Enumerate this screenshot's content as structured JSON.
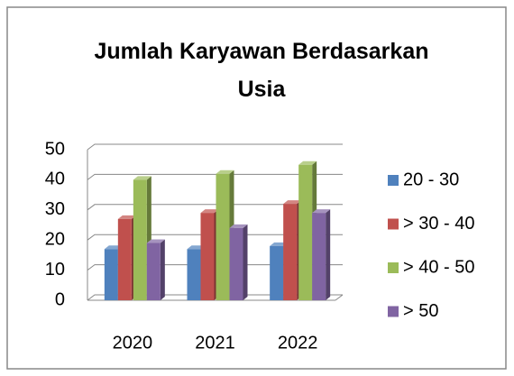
{
  "chart_data": {
    "type": "bar3d",
    "title": "Jumlah Karyawan Berdasarkan Usia",
    "categories": [
      "2020",
      "2021",
      "2022"
    ],
    "series": [
      {
        "name": "20 - 30",
        "color": "#4f81bd",
        "values": [
          17,
          17,
          18
        ]
      },
      {
        "name": "> 30 - 40",
        "color": "#c0504d",
        "values": [
          27,
          29,
          32
        ]
      },
      {
        "name": "> 40 - 50",
        "color": "#9bbb59",
        "values": [
          40,
          42,
          45
        ]
      },
      {
        "name": "> 50",
        "color": "#8064a2",
        "values": [
          19,
          24,
          29
        ]
      }
    ],
    "ylim": [
      0,
      50
    ],
    "yticks": [
      0,
      10,
      20,
      30,
      40,
      50
    ],
    "grid": true,
    "legend": "right"
  }
}
